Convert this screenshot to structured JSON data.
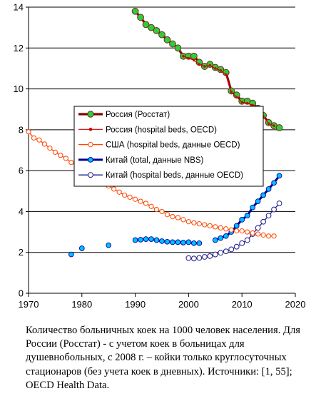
{
  "chart_data": {
    "type": "line",
    "xlim": [
      1970,
      2020
    ],
    "ylim": [
      0,
      14
    ],
    "x_ticks": [
      1970,
      1980,
      1990,
      2000,
      2010,
      2020
    ],
    "y_ticks": [
      0,
      2,
      4,
      6,
      8,
      10,
      12,
      14
    ],
    "grid": "horizontal",
    "legend_position": "center",
    "series": [
      {
        "name": "Россия (Росстат)",
        "color": "#8b0000",
        "marker_color": "#32cd32",
        "x": [
          1990,
          1991,
          1992,
          1993,
          1994,
          1995,
          1996,
          1997,
          1998,
          1999,
          2000,
          2001,
          2002,
          2003,
          2004,
          2005,
          2006,
          2007,
          2008,
          2009,
          2010,
          2011,
          2012,
          2013,
          2014,
          2015,
          2016,
          2017
        ],
        "y": [
          13.8,
          13.5,
          13.15,
          13.0,
          12.85,
          12.65,
          12.4,
          12.2,
          12.0,
          11.6,
          11.6,
          11.6,
          11.3,
          11.1,
          11.2,
          11.05,
          10.95,
          10.8,
          9.9,
          9.7,
          9.4,
          9.4,
          9.3,
          9.05,
          8.7,
          8.35,
          8.2,
          8.1
        ]
      },
      {
        "name": "Россия (hospital beds, OECD)",
        "color": "#d00000",
        "x": [
          1999,
          2000,
          2001,
          2002,
          2003,
          2004,
          2005,
          2006,
          2007,
          2008,
          2009,
          2010,
          2011,
          2012,
          2013,
          2014,
          2015,
          2016
        ],
        "y": [
          11.6,
          11.5,
          11.4,
          11.2,
          11.1,
          11.15,
          11.0,
          10.9,
          10.7,
          9.85,
          9.6,
          9.35,
          9.3,
          9.2,
          9.0,
          8.65,
          8.3,
          8.2
        ]
      },
      {
        "name": "США (hospital beds, данные OECD)",
        "color": "#ff4500",
        "x": [
          1970,
          1971,
          1972,
          1973,
          1974,
          1975,
          1976,
          1977,
          1978,
          1979,
          1980,
          1981,
          1982,
          1983,
          1984,
          1985,
          1986,
          1987,
          1988,
          1989,
          1990,
          1991,
          1992,
          1993,
          1994,
          1995,
          1996,
          1997,
          1998,
          1999,
          2000,
          2001,
          2002,
          2003,
          2004,
          2005,
          2006,
          2007,
          2008,
          2009,
          2010,
          2011,
          2012,
          2013,
          2014,
          2015,
          2016
        ],
        "y": [
          7.9,
          7.6,
          7.5,
          7.3,
          7.1,
          6.9,
          6.75,
          6.6,
          6.4,
          6.25,
          6.0,
          5.9,
          5.75,
          5.6,
          5.4,
          5.25,
          5.1,
          4.95,
          4.8,
          4.7,
          4.6,
          4.5,
          4.4,
          4.25,
          4.1,
          4.0,
          3.85,
          3.75,
          3.7,
          3.6,
          3.5,
          3.45,
          3.4,
          3.35,
          3.3,
          3.25,
          3.2,
          3.15,
          3.1,
          3.05,
          3.05,
          3.0,
          2.95,
          2.9,
          2.85,
          2.8,
          2.8
        ]
      },
      {
        "name": "Китай (total, данные NBS)",
        "color": "#00008b",
        "marker_color": "#00bfff",
        "x": [
          1978,
          1980,
          1985,
          1990,
          1991,
          1992,
          1993,
          1994,
          1995,
          1996,
          1997,
          1998,
          1999,
          2000,
          2001,
          2002,
          2005,
          2006,
          2007,
          2008,
          2009,
          2010,
          2011,
          2012,
          2013,
          2014,
          2015,
          2016,
          2017
        ],
        "y": [
          1.9,
          2.2,
          2.35,
          2.6,
          2.62,
          2.65,
          2.65,
          2.6,
          2.55,
          2.52,
          2.5,
          2.5,
          2.48,
          2.5,
          2.45,
          2.45,
          2.6,
          2.7,
          2.8,
          3.0,
          3.3,
          3.6,
          3.8,
          4.2,
          4.5,
          4.8,
          5.1,
          5.4,
          5.75
        ]
      },
      {
        "name": "Китай (hospital beds, данные OECD)",
        "color": "#1c1c8c",
        "marker_color": "#ffffff",
        "x": [
          2000,
          2001,
          2002,
          2003,
          2004,
          2005,
          2006,
          2007,
          2008,
          2009,
          2010,
          2011,
          2012,
          2013,
          2014,
          2015,
          2016,
          2017
        ],
        "y": [
          1.72,
          1.7,
          1.73,
          1.78,
          1.82,
          1.9,
          1.98,
          2.05,
          2.15,
          2.28,
          2.45,
          2.6,
          2.9,
          3.2,
          3.5,
          3.8,
          4.1,
          4.4
        ]
      }
    ]
  },
  "caption": "Количество больничных коек на 1000 человек населения. Для России (Росстат)  - с учетом коек в больницах для душевнобольных, с 2008 г.  – койки только круглосуточных стационаров (без учета коек в дневных). Источники: [1, 55]; OECD Health Data."
}
